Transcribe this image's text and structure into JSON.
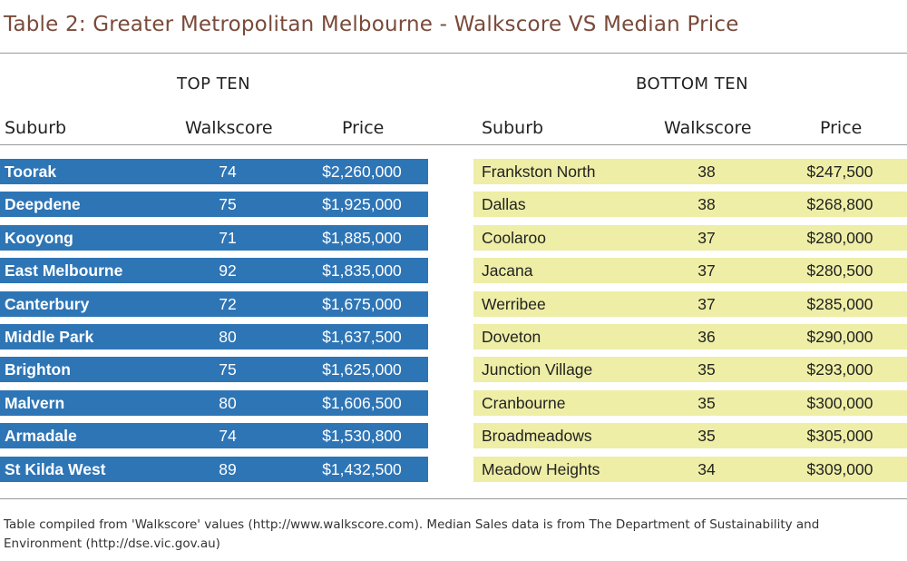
{
  "title": "Table 2: Greater Metropolitan Melbourne - Walkscore VS Median Price",
  "top_ten": {
    "heading": "TOP TEN",
    "columns": [
      "Suburb",
      "Walkscore",
      "Price"
    ],
    "rows": [
      [
        "Toorak",
        "74",
        "$2,260,000"
      ],
      [
        "Deepdene",
        "75",
        "$1,925,000"
      ],
      [
        "Kooyong",
        "71",
        "$1,885,000"
      ],
      [
        "East Melbourne",
        "92",
        "$1,835,000"
      ],
      [
        "Canterbury",
        "72",
        "$1,675,000"
      ],
      [
        "Middle Park",
        "80",
        "$1,637,500"
      ],
      [
        "Brighton",
        "75",
        "$1,625,000"
      ],
      [
        "Malvern",
        "80",
        "$1,606,500"
      ],
      [
        "Armadale",
        "74",
        "$1,530,800"
      ],
      [
        "St Kilda West",
        "89",
        "$1,432,500"
      ]
    ]
  },
  "bottom_ten": {
    "heading": "BOTTOM TEN",
    "columns": [
      "Suburb",
      "Walkscore",
      "Price"
    ],
    "rows": [
      [
        "Frankston North",
        "38",
        "$247,500"
      ],
      [
        "Dallas",
        "38",
        "$268,800"
      ],
      [
        "Coolaroo",
        "37",
        "$280,000"
      ],
      [
        "Jacana",
        "37",
        "$280,500"
      ],
      [
        "Werribee",
        "37",
        "$285,000"
      ],
      [
        "Doveton",
        "36",
        "$290,000"
      ],
      [
        "Junction Village",
        "35",
        "$293,000"
      ],
      [
        "Cranbourne",
        "35",
        "$300,000"
      ],
      [
        "Broadmeadows",
        "35",
        "$305,000"
      ],
      [
        "Meadow Heights",
        "34",
        "$309,000"
      ]
    ]
  },
  "footnote": "Table compiled from 'Walkscore' values (http://www.walkscore.com). Median Sales data is from The Department of Sustainability and Environment (http://dse.vic.gov.au)",
  "colors": {
    "top_row": "#2e75b6",
    "bottom_row": "#eeeea6",
    "title": "#7a4a3a"
  }
}
